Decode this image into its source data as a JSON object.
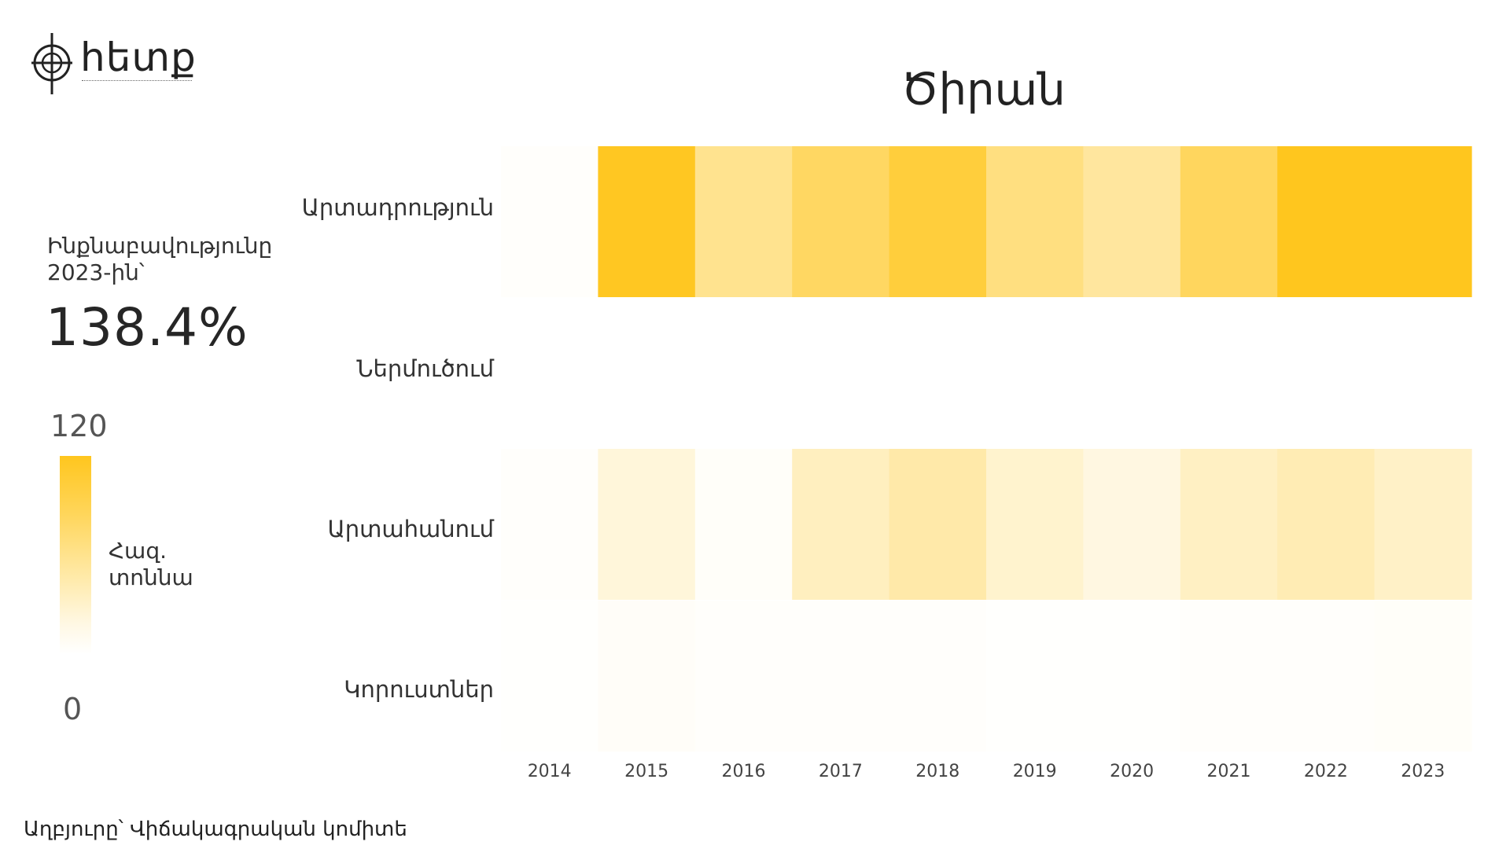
{
  "logo": {
    "text": "հետք"
  },
  "chart_data": {
    "type": "heatmap",
    "title": "Ծիրան",
    "rows": [
      "Արտադրություն",
      "Ներմուծում",
      "Արտահանում",
      "Կորուստներ"
    ],
    "x": [
      "2014",
      "2015",
      "2016",
      "2017",
      "2018",
      "2019",
      "2020",
      "2021",
      "2022",
      "2023"
    ],
    "values": [
      [
        2,
        118,
        60,
        84,
        104,
        68,
        52,
        86,
        120,
        120
      ],
      [
        0,
        0,
        0,
        0,
        0,
        0,
        0,
        0,
        0,
        0
      ],
      [
        2,
        20,
        3,
        34,
        46,
        26,
        16,
        32,
        40,
        30
      ],
      [
        1,
        4,
        2,
        2,
        2,
        1,
        1,
        2,
        2,
        3
      ]
    ],
    "scale": {
      "min": 0,
      "max": 120,
      "min_label": "0",
      "max_label": "120",
      "unit": "Հազ. տոննա"
    },
    "colors": {
      "high": "#ffc61e",
      "low": "#ffffff"
    }
  },
  "summary": {
    "label": "Ինքնաբավությունը 2023-ին՝",
    "value": "138.4%"
  },
  "source": "Աղբյուրը՝ Վիճակագրական կոմիտե"
}
